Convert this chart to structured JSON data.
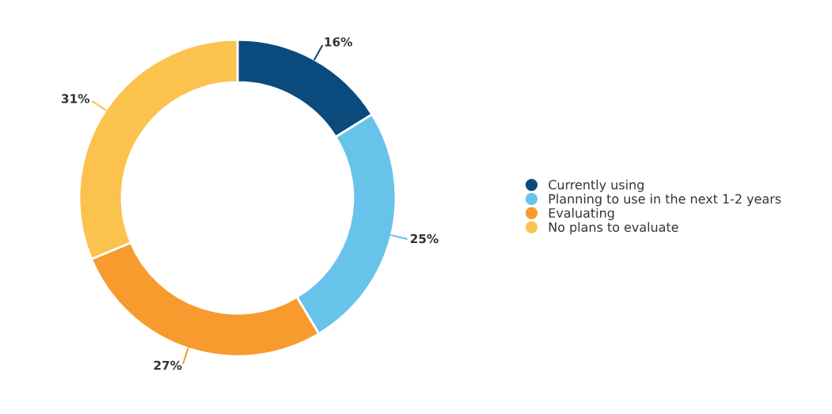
{
  "chart_data": {
    "type": "donut",
    "categories": [
      "Currently using",
      "Planning to use in the next 1-2 years",
      "Evaluating",
      "No plans to evaluate"
    ],
    "values": [
      16,
      25,
      27,
      31
    ],
    "colors": [
      "#0b4a7c",
      "#68c3ea",
      "#f79b2e",
      "#fcc24e"
    ],
    "value_labels": [
      "16%",
      "25%",
      "27%",
      "31%"
    ],
    "legend": "right"
  }
}
